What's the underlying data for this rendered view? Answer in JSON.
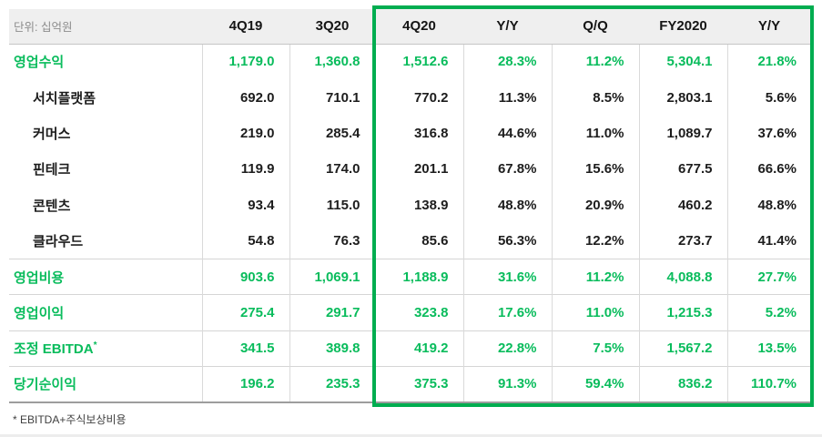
{
  "colors": {
    "green": "#09bc5c",
    "green_border": "#00ad50",
    "header_bg": "#efefef",
    "unit_text": "#8c8c8c",
    "dark_text": "#1d1d1d"
  },
  "table": {
    "unit_label": "단위: 십억원",
    "columns": [
      "4Q19",
      "3Q20",
      "4Q20",
      "Y/Y",
      "Q/Q",
      "FY2020",
      "Y/Y"
    ],
    "highlight_from_column_index": 2,
    "rows": [
      {
        "label": "영업수익",
        "emphasis": true,
        "indent": false,
        "ruled": false,
        "values": [
          "1,179.0",
          "1,360.8",
          "1,512.6",
          "28.3%",
          "11.2%",
          "5,304.1",
          "21.8%"
        ]
      },
      {
        "label": "서치플랫폼",
        "emphasis": false,
        "indent": true,
        "ruled": false,
        "values": [
          "692.0",
          "710.1",
          "770.2",
          "11.3%",
          "8.5%",
          "2,803.1",
          "5.6%"
        ]
      },
      {
        "label": "커머스",
        "emphasis": false,
        "indent": true,
        "ruled": false,
        "values": [
          "219.0",
          "285.4",
          "316.8",
          "44.6%",
          "11.0%",
          "1,089.7",
          "37.6%"
        ]
      },
      {
        "label": "핀테크",
        "emphasis": false,
        "indent": true,
        "ruled": false,
        "values": [
          "119.9",
          "174.0",
          "201.1",
          "67.8%",
          "15.6%",
          "677.5",
          "66.6%"
        ]
      },
      {
        "label": "콘텐츠",
        "emphasis": false,
        "indent": true,
        "ruled": false,
        "values": [
          "93.4",
          "115.0",
          "138.9",
          "48.8%",
          "20.9%",
          "460.2",
          "48.8%"
        ]
      },
      {
        "label": "클라우드",
        "emphasis": false,
        "indent": true,
        "ruled": false,
        "values": [
          "54.8",
          "76.3",
          "85.6",
          "56.3%",
          "12.2%",
          "273.7",
          "41.4%"
        ]
      },
      {
        "label": "영업비용",
        "emphasis": true,
        "indent": false,
        "ruled": true,
        "values": [
          "903.6",
          "1,069.1",
          "1,188.9",
          "31.6%",
          "11.2%",
          "4,088.8",
          "27.7%"
        ]
      },
      {
        "label": "영업이익",
        "emphasis": true,
        "indent": false,
        "ruled": true,
        "values": [
          "275.4",
          "291.7",
          "323.8",
          "17.6%",
          "11.0%",
          "1,215.3",
          "5.2%"
        ]
      },
      {
        "label": "조정 EBITDA",
        "sup": "*",
        "emphasis": true,
        "indent": false,
        "ruled": true,
        "values": [
          "341.5",
          "389.8",
          "419.2",
          "22.8%",
          "7.5%",
          "1,567.2",
          "13.5%"
        ]
      },
      {
        "label": "당기순이익",
        "emphasis": true,
        "indent": false,
        "ruled": true,
        "values": [
          "196.2",
          "235.3",
          "375.3",
          "91.3%",
          "59.4%",
          "836.2",
          "110.7%"
        ]
      }
    ],
    "footnote": "* EBITDA+주식보상비용"
  }
}
